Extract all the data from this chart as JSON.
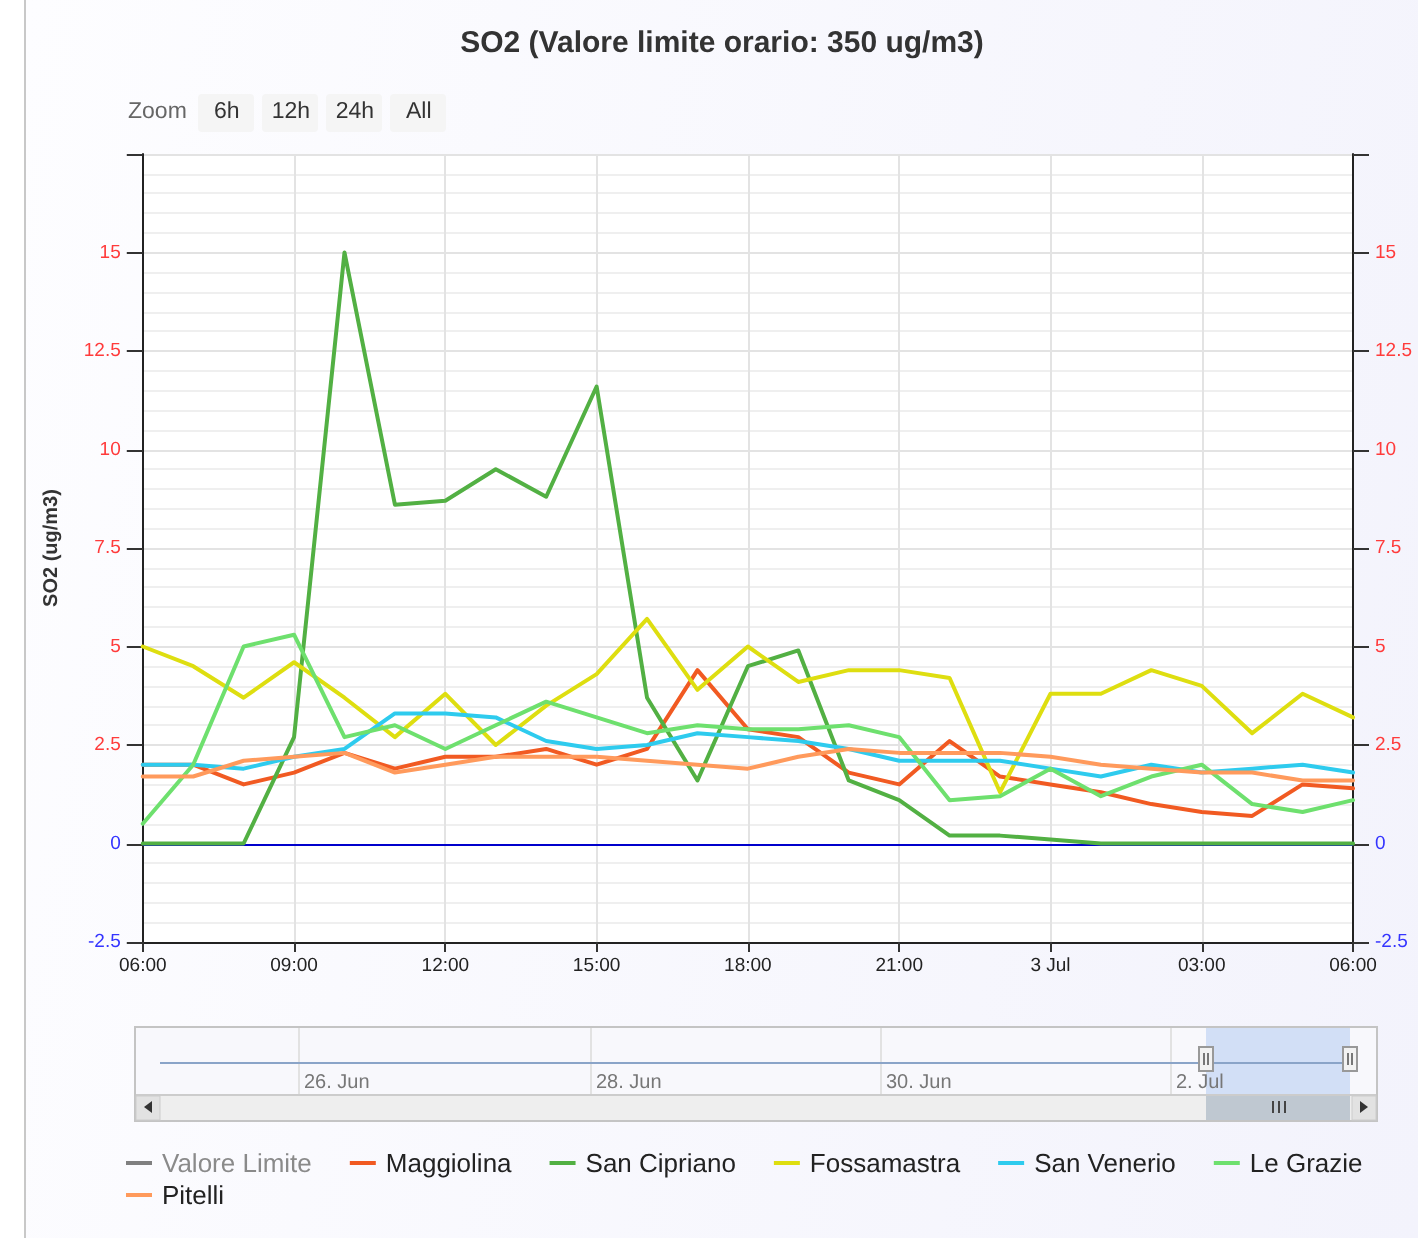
{
  "chart_data": {
    "type": "line",
    "title": "SO2 (Valore limite orario: 350 ug/m3)",
    "ylabel": "SO2 (ug/m3)",
    "x": [
      "--07-02T06:00",
      "--07-02T07:00",
      "--07-02T08:00",
      "--07-02T09:00",
      "--07-02T10:00",
      "--07-02T11:00",
      "--07-02T12:00",
      "--07-02T13:00",
      "--07-02T14:00",
      "--07-02T15:00",
      "--07-02T16:00",
      "--07-02T17:00",
      "--07-02T18:00",
      "--07-02T19:00",
      "--07-02T20:00",
      "--07-02T21:00",
      "--07-02T22:00",
      "--07-02T23:00",
      "--07-03T00:00",
      "--07-03T01:00",
      "--07-03T02:00",
      "--07-03T03:00",
      "--07-03T04:00",
      "--07-03T05:00",
      "--07-03T06:00"
    ],
    "xlim": [
      "--07-02T06:00",
      "--07-03T06:00"
    ],
    "xticks": [
      {
        "value": "--07-02T06:00",
        "label": "06:00"
      },
      {
        "value": "--07-02T09:00",
        "label": "09:00"
      },
      {
        "value": "--07-02T12:00",
        "label": "12:00"
      },
      {
        "value": "--07-02T15:00",
        "label": "15:00"
      },
      {
        "value": "--07-02T18:00",
        "label": "18:00"
      },
      {
        "value": "--07-02T21:00",
        "label": "21:00"
      },
      {
        "value": "--07-03T00:00",
        "label": "3 Jul"
      },
      {
        "value": "--07-03T03:00",
        "label": "03:00"
      },
      {
        "value": "--07-03T06:00",
        "label": "06:00"
      }
    ],
    "ylim": [
      -2.5,
      17.5
    ],
    "yticks": [
      -2.5,
      0,
      2.5,
      5,
      7.5,
      10,
      12.5,
      15,
      {
        "value": 17.5,
        "label": null
      }
    ],
    "y2lim": [
      -2.5,
      17.5
    ],
    "y2ticks": [
      -2.5,
      0,
      2.5,
      5,
      7.5,
      10,
      12.5,
      15,
      {
        "value": 17.5,
        "label": null
      }
    ],
    "series": [
      {
        "name": "Valore Limite",
        "color": "#808080",
        "values": [
          null,
          null,
          null,
          null,
          null,
          null,
          null,
          null,
          null,
          null,
          null,
          null,
          null,
          null,
          null,
          null,
          null,
          null,
          null,
          null,
          null,
          null,
          null,
          null,
          null
        ]
      },
      {
        "name": "Maggiolina",
        "color": "#f15a22",
        "values": [
          2.0,
          2.0,
          1.5,
          1.8,
          2.3,
          1.9,
          2.2,
          2.2,
          2.4,
          2.0,
          2.4,
          4.4,
          2.9,
          2.7,
          1.8,
          1.5,
          2.6,
          1.7,
          1.5,
          1.3,
          1.0,
          0.8,
          0.7,
          1.5,
          1.4
        ]
      },
      {
        "name": "San Cipriano",
        "color": "#52b043",
        "values": [
          0,
          0,
          0,
          2.7,
          15.0,
          8.6,
          8.7,
          9.5,
          8.8,
          11.6,
          3.7,
          1.6,
          4.5,
          4.9,
          1.6,
          1.1,
          0.2,
          0.2,
          0.1,
          0,
          0,
          0,
          0,
          0,
          0
        ]
      },
      {
        "name": "Fossamastra",
        "color": "#dede10",
        "values": [
          5.0,
          4.5,
          3.7,
          4.6,
          3.7,
          2.7,
          3.8,
          2.5,
          3.5,
          4.3,
          5.7,
          3.9,
          5.0,
          4.1,
          4.4,
          4.4,
          4.2,
          1.3,
          3.8,
          3.8,
          4.4,
          4.0,
          2.8,
          3.8,
          3.2
        ]
      },
      {
        "name": "San Venerio",
        "color": "#2ecbee",
        "values": [
          2.0,
          2.0,
          1.9,
          2.2,
          2.4,
          3.3,
          3.3,
          3.2,
          2.6,
          2.4,
          2.5,
          2.8,
          2.7,
          2.6,
          2.4,
          2.1,
          2.1,
          2.1,
          1.9,
          1.7,
          2.0,
          1.8,
          1.9,
          2.0,
          1.8
        ]
      },
      {
        "name": "Le Grazie",
        "color": "#6ee06e",
        "values": [
          0.5,
          2.0,
          5.0,
          5.3,
          2.7,
          3.0,
          2.4,
          3.0,
          3.6,
          3.2,
          2.8,
          3.0,
          2.9,
          2.9,
          3.0,
          2.7,
          1.1,
          1.2,
          1.9,
          1.2,
          1.7,
          2.0,
          1.0,
          0.8,
          1.1
        ]
      },
      {
        "name": "Pitelli",
        "color": "#ff9a5c",
        "values": [
          1.7,
          1.7,
          2.1,
          2.2,
          2.3,
          1.8,
          2.0,
          2.2,
          2.2,
          2.2,
          2.1,
          2.0,
          1.9,
          2.2,
          2.4,
          2.3,
          2.3,
          2.3,
          2.2,
          2.0,
          1.9,
          1.8,
          1.8,
          1.6,
          1.6
        ]
      }
    ],
    "ref_lines": [
      {
        "axis": "y",
        "value": 0,
        "color": "#0000cc"
      }
    ],
    "grid": true,
    "legend": "bottom",
    "marker": "none",
    "line_style": "solid",
    "annotations": [
      "Zoom",
      "6h",
      "12h",
      "24h",
      "All",
      "26. Jun",
      "28. Jun",
      "30. Jun",
      "2. Jul"
    ]
  }
}
